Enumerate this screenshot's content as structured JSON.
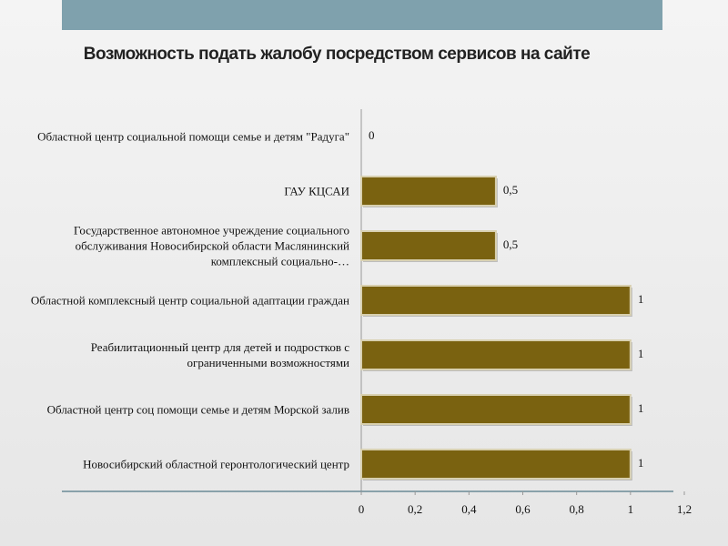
{
  "chart_data": {
    "type": "bar",
    "orientation": "horizontal",
    "title": "Возможность подать жалобу посредством сервисов на сайте",
    "categories": [
      "Областной центр социальной помощи семье и детям \"Радуга\"",
      "ГАУ КЦСАИ",
      "Государственное автономное учреждение социального обслуживания Новосибирской области Маслянинский комплексный социально-…",
      "Областной комплексный центр социальной адаптации граждан",
      "Реабилитационный центр для детей и подростков с ограниченными возможностями",
      "Областной центр соц помощи семье и детям Морской залив",
      "Новосибирский областной геронтологический центр"
    ],
    "values": [
      0,
      0.5,
      0.5,
      1,
      1,
      1,
      1
    ],
    "value_labels": [
      "0",
      "0,5",
      "0,5",
      "1",
      "1",
      "1",
      "1"
    ],
    "color": "#7a6210",
    "xlim": [
      0,
      1.2
    ],
    "xticks": [
      0,
      {
        "value": 0.2,
        "label": "0,2"
      },
      {
        "value": 0.4,
        "label": "0,4"
      },
      {
        "value": 0.6,
        "label": "0,6"
      },
      {
        "value": 0.8,
        "label": "0,8"
      },
      1,
      {
        "value": 1.2,
        "label": "1,2"
      }
    ]
  }
}
